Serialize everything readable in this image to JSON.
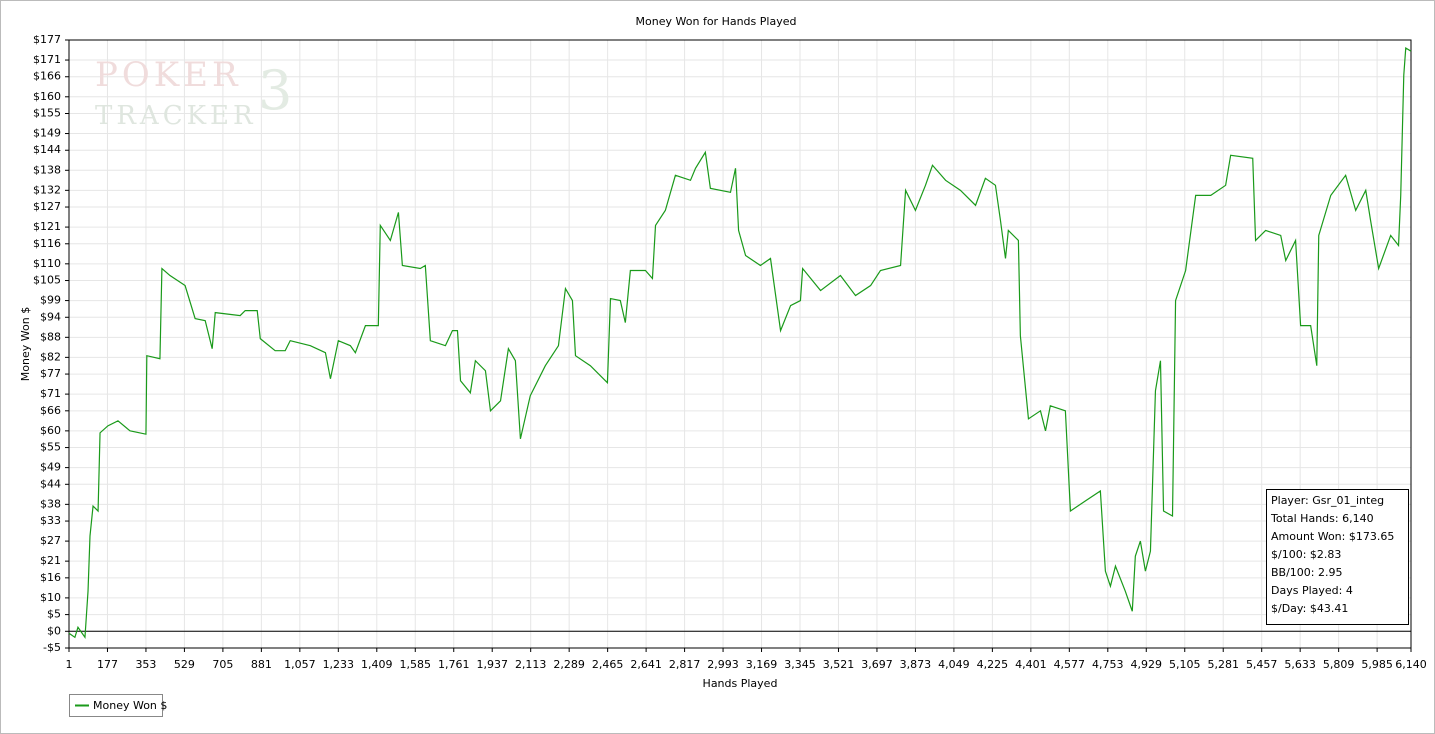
{
  "chart_data": {
    "type": "line",
    "title": "Money Won for Hands Played",
    "x_label": "Hands Played",
    "y_label": "Money Won $",
    "watermark": [
      "POKER",
      "TRACKER",
      "3"
    ],
    "xlim": [
      1,
      6140
    ],
    "ylim": [
      -5,
      177
    ],
    "grid": true,
    "legend": "bottom-left",
    "xticks": [
      1,
      177,
      353,
      529,
      705,
      881,
      {
        "value": 1057,
        "label": "1,057"
      },
      {
        "value": 1233,
        "label": "1,233"
      },
      {
        "value": 1409,
        "label": "1,409"
      },
      {
        "value": 1585,
        "label": "1,585"
      },
      {
        "value": 1761,
        "label": "1,761"
      },
      {
        "value": 1937,
        "label": "1,937"
      },
      {
        "value": 2113,
        "label": "2,113"
      },
      {
        "value": 2289,
        "label": "2,289"
      },
      {
        "value": 2465,
        "label": "2,465"
      },
      {
        "value": 2641,
        "label": "2,641"
      },
      {
        "value": 2817,
        "label": "2,817"
      },
      {
        "value": 2993,
        "label": "2,993"
      },
      {
        "value": 3169,
        "label": "3,169"
      },
      {
        "value": 3345,
        "label": "3,345"
      },
      {
        "value": 3521,
        "label": "3,521"
      },
      {
        "value": 3697,
        "label": "3,697"
      },
      {
        "value": 3873,
        "label": "3,873"
      },
      {
        "value": 4049,
        "label": "4,049"
      },
      {
        "value": 4225,
        "label": "4,225"
      },
      {
        "value": 4401,
        "label": "4,401"
      },
      {
        "value": 4577,
        "label": "4,577"
      },
      {
        "value": 4753,
        "label": "4,753"
      },
      {
        "value": 4929,
        "label": "4,929"
      },
      {
        "value": 5105,
        "label": "5,105"
      },
      {
        "value": 5281,
        "label": "5,281"
      },
      {
        "value": 5457,
        "label": "5,457"
      },
      {
        "value": 5633,
        "label": "5,633"
      },
      {
        "value": 5809,
        "label": "5,809"
      },
      {
        "value": 5985,
        "label": "5,985"
      },
      {
        "value": 6140,
        "label": "6,140"
      }
    ],
    "yticks": [
      {
        "value": -5,
        "label": "-$5"
      },
      {
        "value": 0,
        "label": "$0"
      },
      {
        "value": 5,
        "label": "$5"
      },
      {
        "value": 10,
        "label": "$10"
      },
      {
        "value": 16,
        "label": "$16"
      },
      {
        "value": 21,
        "label": "$21"
      },
      {
        "value": 27,
        "label": "$27"
      },
      {
        "value": 33,
        "label": "$33"
      },
      {
        "value": 38,
        "label": "$38"
      },
      {
        "value": 44,
        "label": "$44"
      },
      {
        "value": 49,
        "label": "$49"
      },
      {
        "value": 55,
        "label": "$55"
      },
      {
        "value": 60,
        "label": "$60"
      },
      {
        "value": 66,
        "label": "$66"
      },
      {
        "value": 71,
        "label": "$71"
      },
      {
        "value": 77,
        "label": "$77"
      },
      {
        "value": 82,
        "label": "$82"
      },
      {
        "value": 88,
        "label": "$88"
      },
      {
        "value": 94,
        "label": "$94"
      },
      {
        "value": 99,
        "label": "$99"
      },
      {
        "value": 105,
        "label": "$105"
      },
      {
        "value": 110,
        "label": "$110"
      },
      {
        "value": 116,
        "label": "$116"
      },
      {
        "value": 121,
        "label": "$121"
      },
      {
        "value": 127,
        "label": "$127"
      },
      {
        "value": 132,
        "label": "$132"
      },
      {
        "value": 138,
        "label": "$138"
      },
      {
        "value": 144,
        "label": "$144"
      },
      {
        "value": 149,
        "label": "$149"
      },
      {
        "value": 155,
        "label": "$155"
      },
      {
        "value": 160,
        "label": "$160"
      },
      {
        "value": 166,
        "label": "$166"
      },
      {
        "value": 171,
        "label": "$171"
      },
      {
        "value": 177,
        "label": "$177"
      }
    ],
    "x": [
      1,
      28,
      42,
      74,
      88,
      97,
      111,
      134,
      143,
      179,
      225,
      280,
      353,
      357,
      417,
      426,
      463,
      532,
      578,
      624,
      656,
      670,
      784,
      807,
      862,
      876,
      944,
      990,
      1013,
      1105,
      1174,
      1197,
      1233,
      1288,
      1311,
      1357,
      1416,
      1425,
      1471,
      1508,
      1526,
      1608,
      1631,
      1654,
      1723,
      1755,
      1778,
      1792,
      1837,
      1860,
      1906,
      1929,
      1975,
      2011,
      2043,
      2066,
      2111,
      2180,
      2240,
      2272,
      2304,
      2318,
      2386,
      2464,
      2478,
      2523,
      2546,
      2569,
      2638,
      2670,
      2684,
      2729,
      2775,
      2844,
      2867,
      2912,
      2935,
      3027,
      3050,
      3064,
      3096,
      3164,
      3210,
      3256,
      3302,
      3347,
      3357,
      3439,
      3530,
      3599,
      3668,
      3713,
      3805,
      3828,
      3873,
      3919,
      3951,
      4011,
      4079,
      4148,
      4193,
      4239,
      4262,
      4285,
      4298,
      4344,
      4353,
      4390,
      4445,
      4468,
      4490,
      4559,
      4582,
      4650,
      4719,
      4742,
      4765,
      4788,
      4833,
      4865,
      4879,
      4902,
      4925,
      4948,
      4971,
      4994,
      5008,
      5049,
      5063,
      5109,
      5155,
      5224,
      5292,
      5315,
      5416,
      5429,
      5475,
      5544,
      5567,
      5612,
      5635,
      5681,
      5709,
      5718,
      5773,
      5841,
      5887,
      5933,
      5955,
      5992,
      6047,
      6083,
      6093,
      6107,
      6116,
      6140
    ],
    "series": [
      {
        "name": "Money Won $",
        "color": "#1a9a1a",
        "values": [
          -0.6,
          -1.8,
          1.2,
          -1.8,
          12,
          28.5,
          37.5,
          36,
          59.4,
          61.5,
          63,
          60,
          59,
          82.5,
          81.6,
          108.6,
          106.5,
          103.5,
          93.6,
          93,
          84.6,
          95.4,
          94.5,
          96,
          96,
          87.6,
          84,
          84,
          87,
          85.5,
          83.4,
          75.6,
          87,
          85.5,
          83.4,
          91.5,
          91.5,
          121.5,
          117,
          125.4,
          109.5,
          108.6,
          109.5,
          87,
          85.5,
          90,
          90,
          75,
          71.4,
          81,
          78,
          66,
          69,
          84.6,
          81,
          57.6,
          70.5,
          79.5,
          85.5,
          102.6,
          99,
          82.5,
          79.5,
          74.4,
          99.6,
          99,
          92.4,
          108,
          108,
          105.6,
          121.5,
          126,
          136.5,
          135,
          138.6,
          143.4,
          132.6,
          131.4,
          138.6,
          120,
          112.5,
          109.5,
          111.6,
          90,
          97.5,
          99,
          108.6,
          102,
          106.5,
          100.5,
          103.5,
          108,
          109.5,
          132,
          126,
          133.5,
          139.5,
          135,
          132,
          127.5,
          135.6,
          133.5,
          123,
          111.6,
          120,
          117,
          88.5,
          63.6,
          66,
          60,
          67.5,
          66,
          36,
          39,
          42,
          18,
          13.5,
          19.5,
          12,
          6,
          22.5,
          27,
          18,
          24,
          72,
          81,
          36,
          34.5,
          99,
          108,
          130.5,
          130.5,
          133.5,
          142.5,
          141.6,
          117,
          120,
          118.5,
          111,
          117,
          91.5,
          91.5,
          79.5,
          118.5,
          130.5,
          136.5,
          126,
          132,
          123,
          108.6,
          118.5,
          115.5,
          130.5,
          166.5,
          174.6,
          173.65
        ]
      }
    ],
    "annotations": [
      "Player: Gsr_01_integ",
      "Total Hands: 6,140",
      "Amount Won: $173.65",
      "$/100: $2.83",
      "BB/100: 2.95",
      "Days Played: 4",
      "$/Day: $43.41"
    ]
  }
}
